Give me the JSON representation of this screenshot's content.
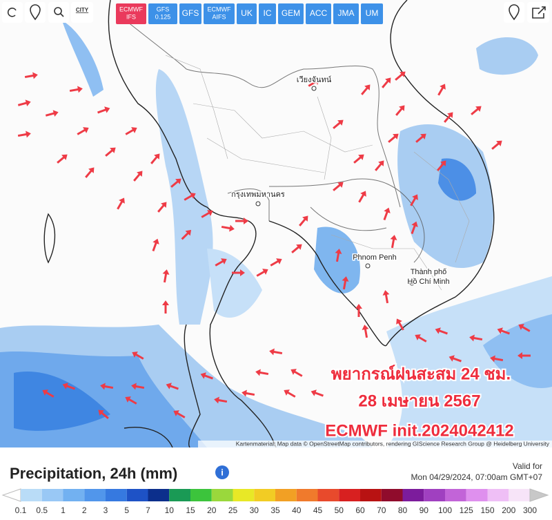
{
  "toolbar": {
    "city": "CITY",
    "models": [
      [
        "ECMWF",
        "IFS"
      ],
      [
        "GFS",
        "0.125"
      ],
      [
        "GFS"
      ],
      [
        "ECMWF",
        "AIFS"
      ],
      [
        "UK"
      ],
      [
        "IC"
      ],
      [
        "GEM"
      ],
      [
        "ACC"
      ],
      [
        "JMA"
      ],
      [
        "UM"
      ]
    ],
    "active": 0
  },
  "map": {
    "places": [
      "Phnom Penh",
      "Thành phố",
      "Hồ Chí Minh",
      "กรุงเทพมหานคร",
      "เวียงจันทน์"
    ],
    "overlay": [
      "พยากรณ์ฝนสะสม 24 ชม.",
      "28 เมษายน 2567",
      "ECMWF init.2024042412"
    ],
    "attribution": "Kartenmaterial: Map data © OpenStreetMap contributors, rendering GIScience Research Group @ Heidelberg University"
  },
  "legend": {
    "title": "Precipitation, 24h (mm)",
    "valid_label": "Valid for",
    "valid_time": "Mon 04/29/2024, 07:00am GMT+07",
    "labels": [
      0.1,
      0.5,
      1,
      2,
      3,
      5,
      7,
      10,
      15,
      20,
      25,
      30,
      35,
      40,
      45,
      50,
      60,
      70,
      80,
      90,
      100,
      125,
      150,
      200,
      300
    ],
    "colors": [
      "#b9dcf7",
      "#99c8f5",
      "#72b1f1",
      "#5196eb",
      "#3679e0",
      "#1e52c6",
      "#0c2f8c",
      "#1a9a55",
      "#3cc43c",
      "#9ad83c",
      "#e8e826",
      "#f2cc24",
      "#f2a024",
      "#f07a2c",
      "#e84a2c",
      "#d82020",
      "#b81212",
      "#900c2c",
      "#7c1c9c",
      "#a040c0",
      "#c264d8",
      "#df90ee",
      "#efbff6",
      "#f7e4f8"
    ]
  }
}
